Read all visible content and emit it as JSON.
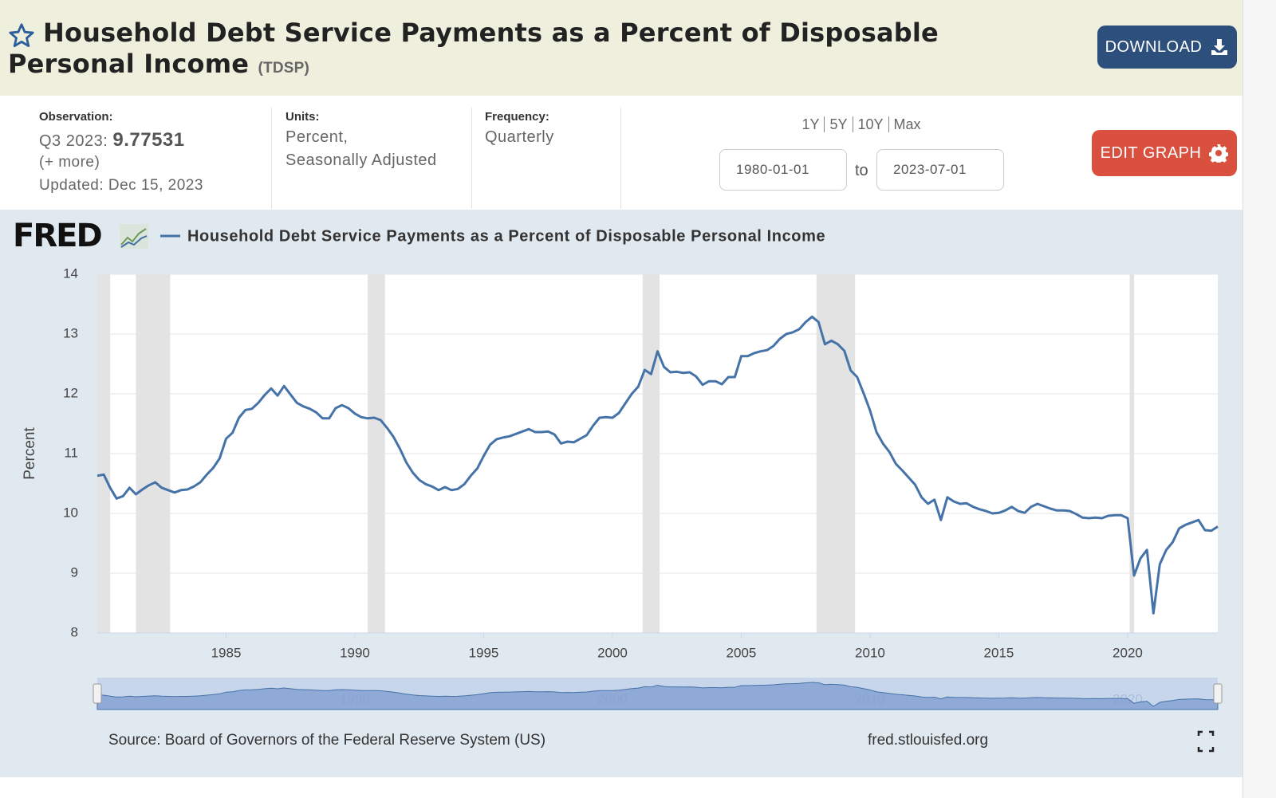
{
  "header": {
    "title": "Household Debt Service Payments as a Percent of Disposable Personal Income",
    "series_id": "(TDSP)",
    "download": "DOWNLOAD"
  },
  "info": {
    "observation_label": "Observation:",
    "observation_period": "Q3 2023:",
    "observation_value": 9.77531,
    "more": "(+ more)",
    "updated": "Updated: Dec 15, 2023",
    "units_label": "Units:",
    "units": [
      "Percent,",
      "Seasonally Adjusted"
    ],
    "frequency_label": "Frequency:",
    "frequency": "Quarterly",
    "ranges": [
      "1Y",
      "5Y",
      "10Y",
      "Max"
    ],
    "start_date": "1980-01-01",
    "to": "to",
    "end_date": "2023-07-01",
    "edit_graph": "EDIT GRAPH"
  },
  "chart_data": {
    "type": "line",
    "logo": "FRED",
    "ylabel": "Percent",
    "source": "Source: Board of Governors of the Federal Reserve System (US)",
    "site": "fred.stlouisfed.org",
    "x": [
      1980,
      1980.25,
      1980.5,
      1980.75,
      1981,
      1981.25,
      1981.5,
      1981.75,
      1982,
      1982.25,
      1982.5,
      1982.75,
      1983,
      1983.25,
      1983.5,
      1983.75,
      1984,
      1984.25,
      1984.5,
      1984.75,
      1985,
      1985.25,
      1985.5,
      1985.75,
      1986,
      1986.25,
      1986.5,
      1986.75,
      1987,
      1987.25,
      1987.5,
      1987.75,
      1988,
      1988.25,
      1988.5,
      1988.75,
      1989,
      1989.25,
      1989.5,
      1989.75,
      1990,
      1990.25,
      1990.5,
      1990.75,
      1991,
      1991.25,
      1991.5,
      1991.75,
      1992,
      1992.25,
      1992.5,
      1992.75,
      1993,
      1993.25,
      1993.5,
      1993.75,
      1994,
      1994.25,
      1994.5,
      1994.75,
      1995,
      1995.25,
      1995.5,
      1995.75,
      1996,
      1996.25,
      1996.5,
      1996.75,
      1997,
      1997.25,
      1997.5,
      1997.75,
      1998,
      1998.25,
      1998.5,
      1998.75,
      1999,
      1999.25,
      1999.5,
      1999.75,
      2000,
      2000.25,
      2000.5,
      2000.75,
      2001,
      2001.25,
      2001.5,
      2001.75,
      2002,
      2002.25,
      2002.5,
      2002.75,
      2003,
      2003.25,
      2003.5,
      2003.75,
      2004,
      2004.25,
      2004.5,
      2004.75,
      2005,
      2005.25,
      2005.5,
      2005.75,
      2006,
      2006.25,
      2006.5,
      2006.75,
      2007,
      2007.25,
      2007.5,
      2007.75,
      2008,
      2008.25,
      2008.5,
      2008.75,
      2009,
      2009.25,
      2009.5,
      2009.75,
      2010,
      2010.25,
      2010.5,
      2010.75,
      2011,
      2011.25,
      2011.5,
      2011.75,
      2012,
      2012.25,
      2012.5,
      2012.75,
      2013,
      2013.25,
      2013.5,
      2013.75,
      2014,
      2014.25,
      2014.5,
      2014.75,
      2015,
      2015.25,
      2015.5,
      2015.75,
      2016,
      2016.25,
      2016.5,
      2016.75,
      2017,
      2017.25,
      2017.5,
      2017.75,
      2018,
      2018.25,
      2018.5,
      2018.75,
      2019,
      2019.25,
      2019.5,
      2019.75,
      2020,
      2020.25,
      2020.5,
      2020.75,
      2021,
      2021.25,
      2021.5,
      2021.75,
      2022,
      2022.25,
      2022.5,
      2022.75,
      2023,
      2023.25,
      2023.5
    ],
    "series": [
      {
        "name": "Household Debt Service Payments as a Percent of Disposable Personal Income",
        "color": "#4572a7",
        "values": [
          10.63,
          10.65,
          10.43,
          10.25,
          10.29,
          10.43,
          10.32,
          10.4,
          10.47,
          10.52,
          10.43,
          10.39,
          10.35,
          10.39,
          10.4,
          10.45,
          10.52,
          10.65,
          10.76,
          10.92,
          11.25,
          11.35,
          11.6,
          11.73,
          11.75,
          11.85,
          11.98,
          12.09,
          11.97,
          12.13,
          11.99,
          11.85,
          11.79,
          11.75,
          11.69,
          11.59,
          11.59,
          11.76,
          11.81,
          11.76,
          11.67,
          11.61,
          11.59,
          11.6,
          11.56,
          11.43,
          11.28,
          11.08,
          10.85,
          10.68,
          10.56,
          10.49,
          10.45,
          10.39,
          10.44,
          10.39,
          10.41,
          10.49,
          10.63,
          10.75,
          10.96,
          11.15,
          11.24,
          11.27,
          11.29,
          11.33,
          11.37,
          11.41,
          11.36,
          11.36,
          11.37,
          11.32,
          11.17,
          11.2,
          11.19,
          11.25,
          11.31,
          11.47,
          11.6,
          11.61,
          11.6,
          11.68,
          11.84,
          12.0,
          12.12,
          12.4,
          12.33,
          12.71,
          12.45,
          12.36,
          12.37,
          12.35,
          12.36,
          12.29,
          12.15,
          12.21,
          12.21,
          12.16,
          12.28,
          12.28,
          12.63,
          12.63,
          12.68,
          12.71,
          12.73,
          12.8,
          12.92,
          13.0,
          13.03,
          13.08,
          13.2,
          13.29,
          13.2,
          12.83,
          12.89,
          12.83,
          12.72,
          12.39,
          12.28,
          12.01,
          11.72,
          11.36,
          11.17,
          11.03,
          10.83,
          10.72,
          10.6,
          10.48,
          10.27,
          10.16,
          10.23,
          9.89,
          10.27,
          10.2,
          10.16,
          10.17,
          10.11,
          10.07,
          10.04,
          10.0,
          10.01,
          10.05,
          10.11,
          10.04,
          10.01,
          10.11,
          10.16,
          10.12,
          10.08,
          10.05,
          10.05,
          10.04,
          9.99,
          9.93,
          9.92,
          9.93,
          9.92,
          9.96,
          9.97,
          9.97,
          9.92,
          8.96,
          9.25,
          9.39,
          8.33,
          9.15,
          9.39,
          9.52,
          9.75,
          9.81,
          9.85,
          9.89,
          9.72,
          9.71,
          9.78
        ]
      }
    ],
    "recessions": [
      [
        1980,
        1980.5
      ],
      [
        1981.5,
        1982.83
      ],
      [
        1990.5,
        1991.17
      ],
      [
        2001.17,
        2001.83
      ],
      [
        2007.92,
        2009.42
      ],
      [
        2020.08,
        2020.25
      ]
    ],
    "xlim": [
      1980,
      2023.5
    ],
    "xticks": [
      1985,
      1990,
      1995,
      2000,
      2005,
      2010,
      2015,
      2020
    ],
    "ylim": [
      8,
      14
    ],
    "yticks": [
      8,
      9,
      10,
      11,
      12,
      13,
      14
    ],
    "grid": true,
    "navigator": {
      "xticks": [
        1990,
        2000,
        2010,
        2020
      ]
    }
  }
}
